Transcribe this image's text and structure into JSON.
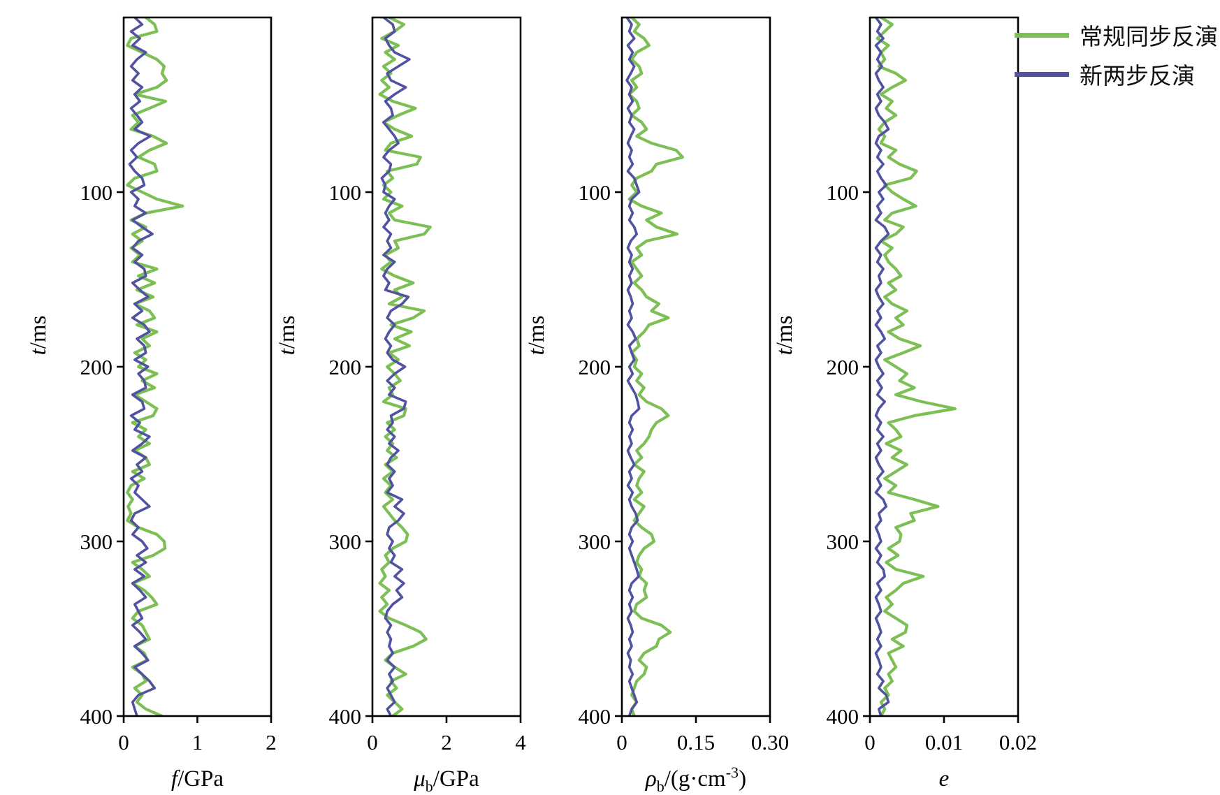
{
  "legend": {
    "items": [
      {
        "label": "常规同步反演",
        "color": "#7cbf54"
      },
      {
        "label": "新两步反演",
        "color": "#5153a1"
      }
    ]
  },
  "chart_data": {
    "type": "line",
    "orientation": "vertical-profile",
    "grid": false,
    "legend_position": "top-right",
    "ylabel_parts": [
      [
        "i",
        "t"
      ],
      [
        "n",
        "/ms"
      ]
    ],
    "ylim": [
      0,
      400
    ],
    "yticks": [
      100,
      200,
      300,
      400
    ],
    "t_step": 4,
    "panels": [
      {
        "xlabel_parts": [
          [
            "i",
            "f"
          ],
          [
            "n",
            "/GPa"
          ]
        ],
        "xlim": [
          0,
          2
        ],
        "xticks": [
          0,
          1,
          2
        ],
        "xtick_labels": [
          "0",
          "1",
          "2"
        ],
        "series": [
          {
            "name": "常规同步反演",
            "color": "#7cbf54",
            "values": [
              0.3,
              0.42,
              0.45,
              0.1,
              0.05,
              0.25,
              0.45,
              0.55,
              0.52,
              0.58,
              0.45,
              0.15,
              0.57,
              0.35,
              0.12,
              0.2,
              0.1,
              0.4,
              0.58,
              0.35,
              0.2,
              0.42,
              0.45,
              0.15,
              0.05,
              0.25,
              0.45,
              0.8,
              0.3,
              0.1,
              0.3,
              0.12,
              0.25,
              0.1,
              0.22,
              0.12,
              0.45,
              0.2,
              0.42,
              0.18,
              0.4,
              0.15,
              0.35,
              0.42,
              0.18,
              0.45,
              0.25,
              0.35,
              0.15,
              0.3,
              0.2,
              0.45,
              0.25,
              0.42,
              0.15,
              0.3,
              0.45,
              0.4,
              0.12,
              0.3,
              0.2,
              0.35,
              0.15,
              0.3,
              0.35,
              0.12,
              0.28,
              0.1,
              0.05,
              0.12,
              0.06,
              0.1,
              0.05,
              0.2,
              0.45,
              0.55,
              0.56,
              0.4,
              0.12,
              0.25,
              0.35,
              0.12,
              0.28,
              0.38,
              0.45,
              0.2,
              0.12,
              0.25,
              0.3,
              0.35,
              0.15,
              0.28,
              0.32,
              0.12,
              0.25,
              0.3,
              0.15,
              0.25,
              0.18,
              0.3,
              0.52
            ]
          },
          {
            "name": "新两步反演",
            "color": "#5153a1",
            "values": [
              0.15,
              0.25,
              0.1,
              0.22,
              0.12,
              0.3,
              0.18,
              0.1,
              0.2,
              0.12,
              0.25,
              0.15,
              0.22,
              0.1,
              0.18,
              0.25,
              0.15,
              0.36,
              0.2,
              0.1,
              0.18,
              0.08,
              0.15,
              0.25,
              0.28,
              0.1,
              0.2,
              0.15,
              0.3,
              0.12,
              0.25,
              0.39,
              0.2,
              0.12,
              0.25,
              0.15,
              0.28,
              0.3,
              0.12,
              0.22,
              0.33,
              0.15,
              0.25,
              0.12,
              0.28,
              0.35,
              0.18,
              0.28,
              0.3,
              0.15,
              0.33,
              0.2,
              0.28,
              0.3,
              0.12,
              0.25,
              0.28,
              0.1,
              0.22,
              0.15,
              0.35,
              0.25,
              0.12,
              0.3,
              0.18,
              0.25,
              0.1,
              0.2,
              0.15,
              0.25,
              0.35,
              0.15,
              0.1,
              0.2,
              0.12,
              0.25,
              0.32,
              0.18,
              0.3,
              0.15,
              0.28,
              0.12,
              0.22,
              0.3,
              0.15,
              0.2,
              0.25,
              0.12,
              0.22,
              0.3,
              0.15,
              0.25,
              0.33,
              0.15,
              0.25,
              0.35,
              0.42,
              0.2,
              0.12,
              0.15,
              0.18
            ]
          }
        ]
      },
      {
        "xlabel_parts": [
          [
            "i",
            "μ"
          ],
          [
            "sub",
            "b"
          ],
          [
            "n",
            "/GPa"
          ]
        ],
        "xlim": [
          0,
          4
        ],
        "xticks": [
          0,
          2,
          4
        ],
        "xtick_labels": [
          "0",
          "2",
          "4"
        ],
        "series": [
          {
            "name": "常规同步反演",
            "color": "#7cbf54",
            "values": [
              0.45,
              0.85,
              0.6,
              0.25,
              0.7,
              0.35,
              0.6,
              0.3,
              0.5,
              0.25,
              0.45,
              0.2,
              0.55,
              1.16,
              0.7,
              0.3,
              0.6,
              1.06,
              0.5,
              0.35,
              1.3,
              1.2,
              0.4,
              0.55,
              0.3,
              0.5,
              0.3,
              0.8,
              0.45,
              0.6,
              1.56,
              1.4,
              0.6,
              0.7,
              0.35,
              0.5,
              0.25,
              0.6,
              1.1,
              0.6,
              0.8,
              0.45,
              1.4,
              1.1,
              0.5,
              1.05,
              0.6,
              1.0,
              0.45,
              0.7,
              0.4,
              0.6,
              0.75,
              0.45,
              0.55,
              0.3,
              0.9,
              0.85,
              0.4,
              0.6,
              0.35,
              0.55,
              0.4,
              0.65,
              0.35,
              0.55,
              0.3,
              0.5,
              0.35,
              0.55,
              0.3,
              0.45,
              0.6,
              0.8,
              0.95,
              0.9,
              0.55,
              0.35,
              0.45,
              0.25,
              0.35,
              0.2,
              0.45,
              0.25,
              0.4,
              0.2,
              0.45,
              0.9,
              1.3,
              1.45,
              1.1,
              0.55,
              0.35,
              0.6,
              0.9,
              0.5,
              0.65,
              0.4,
              0.6,
              0.8,
              0.55
            ]
          },
          {
            "name": "新两步反演",
            "color": "#5153a1",
            "values": [
              0.3,
              0.55,
              0.6,
              0.35,
              0.45,
              0.6,
              1.0,
              0.7,
              0.4,
              0.5,
              0.9,
              0.6,
              0.35,
              0.5,
              0.55,
              0.3,
              0.45,
              0.6,
              0.7,
              0.45,
              0.3,
              0.5,
              0.45,
              0.25,
              0.35,
              0.3,
              0.6,
              0.45,
              0.35,
              0.45,
              0.3,
              0.5,
              0.4,
              0.5,
              0.3,
              0.6,
              0.4,
              0.3,
              0.45,
              0.35,
              0.97,
              0.8,
              0.5,
              0.4,
              0.6,
              0.45,
              0.35,
              0.5,
              0.4,
              0.55,
              0.88,
              0.6,
              0.4,
              0.6,
              0.45,
              0.9,
              0.85,
              0.5,
              0.55,
              0.4,
              0.6,
              0.45,
              0.7,
              0.5,
              0.4,
              0.6,
              0.45,
              0.55,
              0.4,
              0.8,
              0.6,
              0.85,
              0.7,
              0.45,
              0.4,
              0.55,
              0.45,
              0.6,
              0.5,
              0.8,
              0.6,
              0.85,
              0.65,
              0.8,
              0.55,
              0.4,
              0.35,
              0.5,
              0.4,
              0.5,
              0.45,
              0.55,
              0.4,
              0.6,
              0.45,
              0.55,
              0.4,
              0.5,
              0.6,
              0.4,
              0.5
            ]
          }
        ]
      },
      {
        "xlabel_parts": [
          [
            "i",
            "ρ"
          ],
          [
            "sub",
            "b"
          ],
          [
            "n",
            "/(g·cm"
          ],
          [
            "sup",
            "-3"
          ],
          [
            "n",
            ")"
          ]
        ],
        "xlim": [
          0,
          0.3
        ],
        "xticks": [
          0,
          0.15,
          0.3
        ],
        "xtick_labels": [
          "0",
          "0.15",
          "0.30"
        ],
        "series": [
          {
            "name": "常规同步反演",
            "color": "#7cbf54",
            "values": [
              0.02,
              0.035,
              0.025,
              0.045,
              0.055,
              0.03,
              0.02,
              0.035,
              0.04,
              0.02,
              0.03,
              0.015,
              0.03,
              0.035,
              0.02,
              0.04,
              0.05,
              0.03,
              0.06,
              0.11,
              0.123,
              0.07,
              0.06,
              0.03,
              0.02,
              0.03,
              0.015,
              0.04,
              0.08,
              0.05,
              0.07,
              0.112,
              0.05,
              0.03,
              0.04,
              0.02,
              0.03,
              0.04,
              0.025,
              0.04,
              0.05,
              0.075,
              0.06,
              0.094,
              0.055,
              0.045,
              0.03,
              0.035,
              0.02,
              0.03,
              0.025,
              0.04,
              0.03,
              0.045,
              0.035,
              0.05,
              0.08,
              0.094,
              0.07,
              0.06,
              0.055,
              0.045,
              0.03,
              0.04,
              0.025,
              0.045,
              0.035,
              0.03,
              0.04,
              0.025,
              0.045,
              0.035,
              0.025,
              0.04,
              0.06,
              0.065,
              0.045,
              0.035,
              0.03,
              0.04,
              0.035,
              0.05,
              0.045,
              0.05,
              0.03,
              0.025,
              0.04,
              0.08,
              0.098,
              0.075,
              0.07,
              0.045,
              0.035,
              0.05,
              0.045,
              0.03,
              0.025,
              0.02,
              0.03,
              0.02,
              0.025
            ]
          },
          {
            "name": "新两步反演",
            "color": "#5153a1",
            "values": [
              0.01,
              0.02,
              0.015,
              0.025,
              0.012,
              0.022,
              0.015,
              0.025,
              0.018,
              0.01,
              0.02,
              0.015,
              0.022,
              0.012,
              0.02,
              0.015,
              0.025,
              0.018,
              0.012,
              0.02,
              0.015,
              0.022,
              0.012,
              0.025,
              0.03,
              0.035,
              0.02,
              0.015,
              0.022,
              0.015,
              0.025,
              0.03,
              0.018,
              0.012,
              0.02,
              0.015,
              0.022,
              0.015,
              0.02,
              0.012,
              0.018,
              0.022,
              0.015,
              0.02,
              0.012,
              0.022,
              0.028,
              0.015,
              0.02,
              0.025,
              0.015,
              0.022,
              0.012,
              0.02,
              0.028,
              0.032,
              0.035,
              0.02,
              0.015,
              0.022,
              0.015,
              0.02,
              0.012,
              0.018,
              0.025,
              0.015,
              0.02,
              0.012,
              0.022,
              0.015,
              0.02,
              0.028,
              0.032,
              0.02,
              0.015,
              0.022,
              0.015,
              0.02,
              0.025,
              0.03,
              0.034,
              0.02,
              0.015,
              0.022,
              0.015,
              0.02,
              0.012,
              0.018,
              0.022,
              0.015,
              0.02,
              0.012,
              0.018,
              0.015,
              0.022,
              0.015,
              0.02,
              0.025,
              0.03,
              0.02,
              0.015
            ]
          }
        ]
      },
      {
        "xlabel_parts": [
          [
            "i",
            "e"
          ]
        ],
        "xlim": [
          0,
          0.02
        ],
        "xticks": [
          0,
          0.01,
          0.02
        ],
        "xtick_labels": [
          "0",
          "0.01",
          "0.02"
        ],
        "series": [
          {
            "name": "常规同步反演",
            "color": "#7cbf54",
            "values": [
              0.0015,
              0.003,
              0.002,
              0.001,
              0.0025,
              0.0015,
              0.002,
              0.0012,
              0.0035,
              0.0048,
              0.003,
              0.0015,
              0.003,
              0.0022,
              0.0035,
              0.002,
              0.0012,
              0.002,
              0.0015,
              0.0035,
              0.0025,
              0.004,
              0.0063,
              0.0055,
              0.002,
              0.003,
              0.0045,
              0.0062,
              0.003,
              0.002,
              0.0045,
              0.0035,
              0.0015,
              0.003,
              0.002,
              0.0025,
              0.0035,
              0.0042,
              0.0025,
              0.0035,
              0.002,
              0.003,
              0.005,
              0.0035,
              0.0045,
              0.0025,
              0.004,
              0.0068,
              0.0045,
              0.002,
              0.0035,
              0.005,
              0.004,
              0.006,
              0.0035,
              0.007,
              0.0115,
              0.006,
              0.0025,
              0.0035,
              0.0042,
              0.0022,
              0.0042,
              0.003,
              0.005,
              0.0035,
              0.002,
              0.0035,
              0.0025,
              0.006,
              0.0092,
              0.0055,
              0.006,
              0.0035,
              0.0042,
              0.004,
              0.0025,
              0.0038,
              0.0022,
              0.0035,
              0.0072,
              0.0045,
              0.0035,
              0.0022,
              0.003,
              0.002,
              0.0035,
              0.005,
              0.0048,
              0.003,
              0.0045,
              0.0025,
              0.003,
              0.0035,
              0.0025,
              0.003,
              0.002,
              0.0025,
              0.0015,
              0.002,
              0.0015
            ]
          },
          {
            "name": "新两步反演",
            "color": "#5153a1",
            "values": [
              0.0008,
              0.0015,
              0.001,
              0.0018,
              0.0008,
              0.0015,
              0.001,
              0.0016,
              0.0008,
              0.0012,
              0.0018,
              0.001,
              0.0015,
              0.0008,
              0.0012,
              0.002,
              0.0025,
              0.0012,
              0.0008,
              0.0015,
              0.001,
              0.0018,
              0.001,
              0.0015,
              0.0022,
              0.0012,
              0.0018,
              0.001,
              0.0015,
              0.0008,
              0.002,
              0.0025,
              0.0015,
              0.0008,
              0.0015,
              0.001,
              0.0018,
              0.0012,
              0.0015,
              0.0008,
              0.0012,
              0.0018,
              0.001,
              0.0015,
              0.0008,
              0.0015,
              0.002,
              0.001,
              0.0015,
              0.0008,
              0.0012,
              0.0018,
              0.001,
              0.0016,
              0.001,
              0.002,
              0.0012,
              0.0008,
              0.0015,
              0.001,
              0.0018,
              0.001,
              0.0015,
              0.0008,
              0.0012,
              0.0018,
              0.001,
              0.0015,
              0.0008,
              0.0018,
              0.0022,
              0.0012,
              0.0015,
              0.0008,
              0.0012,
              0.0015,
              0.0008,
              0.0015,
              0.001,
              0.0018,
              0.002,
              0.001,
              0.0015,
              0.0008,
              0.0012,
              0.0015,
              0.0008,
              0.0012,
              0.0015,
              0.001,
              0.0015,
              0.0008,
              0.0012,
              0.0015,
              0.001,
              0.0018,
              0.0012,
              0.0022,
              0.0025,
              0.0012,
              0.0015
            ]
          }
        ]
      }
    ]
  }
}
